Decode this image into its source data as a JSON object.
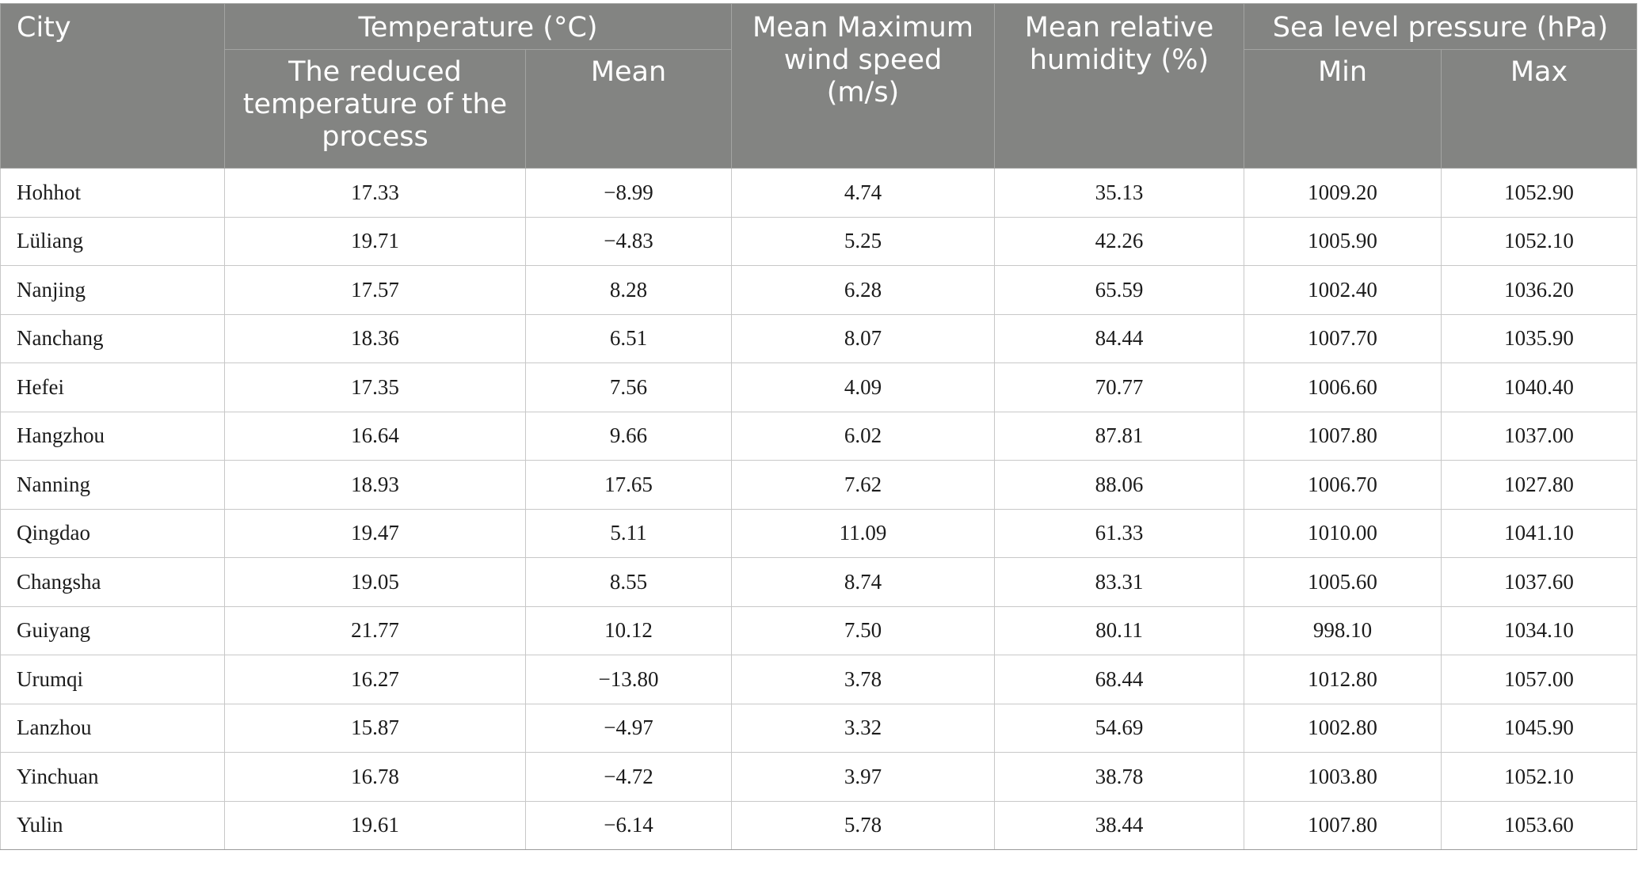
{
  "table": {
    "headers": {
      "city": "City",
      "temperature_group": "Temperature (°C)",
      "reduced_temperature": "The reduced temperature of the process",
      "mean_temperature": "Mean",
      "wind_speed": "Mean Maximum wind speed (m/s)",
      "humidity": "Mean relative humidity (%)",
      "pressure_group": "Sea level pressure (hPa)",
      "pressure_min": "Min",
      "pressure_max": "Max"
    },
    "rows": [
      {
        "city": "Hohhot",
        "reduced": "17.33",
        "mean": "−8.99",
        "wind": "4.74",
        "humidity": "35.13",
        "min": "1009.20",
        "max": "1052.90"
      },
      {
        "city": "Lüliang",
        "reduced": "19.71",
        "mean": "−4.83",
        "wind": "5.25",
        "humidity": "42.26",
        "min": "1005.90",
        "max": "1052.10"
      },
      {
        "city": "Nanjing",
        "reduced": "17.57",
        "mean": "8.28",
        "wind": "6.28",
        "humidity": "65.59",
        "min": "1002.40",
        "max": "1036.20"
      },
      {
        "city": "Nanchang",
        "reduced": "18.36",
        "mean": "6.51",
        "wind": "8.07",
        "humidity": "84.44",
        "min": "1007.70",
        "max": "1035.90"
      },
      {
        "city": "Hefei",
        "reduced": "17.35",
        "mean": "7.56",
        "wind": "4.09",
        "humidity": "70.77",
        "min": "1006.60",
        "max": "1040.40"
      },
      {
        "city": "Hangzhou",
        "reduced": "16.64",
        "mean": "9.66",
        "wind": "6.02",
        "humidity": "87.81",
        "min": "1007.80",
        "max": "1037.00"
      },
      {
        "city": "Nanning",
        "reduced": "18.93",
        "mean": "17.65",
        "wind": "7.62",
        "humidity": "88.06",
        "min": "1006.70",
        "max": "1027.80"
      },
      {
        "city": "Qingdao",
        "reduced": "19.47",
        "mean": "5.11",
        "wind": "11.09",
        "humidity": "61.33",
        "min": "1010.00",
        "max": "1041.10"
      },
      {
        "city": "Changsha",
        "reduced": "19.05",
        "mean": "8.55",
        "wind": "8.74",
        "humidity": "83.31",
        "min": "1005.60",
        "max": "1037.60"
      },
      {
        "city": "Guiyang",
        "reduced": "21.77",
        "mean": "10.12",
        "wind": "7.50",
        "humidity": "80.11",
        "min": "998.10",
        "max": "1034.10"
      },
      {
        "city": "Urumqi",
        "reduced": "16.27",
        "mean": "−13.80",
        "wind": "3.78",
        "humidity": "68.44",
        "min": "1012.80",
        "max": "1057.00"
      },
      {
        "city": "Lanzhou",
        "reduced": "15.87",
        "mean": "−4.97",
        "wind": "3.32",
        "humidity": "54.69",
        "min": "1002.80",
        "max": "1045.90"
      },
      {
        "city": "Yinchuan",
        "reduced": "16.78",
        "mean": "−4.72",
        "wind": "3.97",
        "humidity": "38.78",
        "min": "1003.80",
        "max": "1052.10"
      },
      {
        "city": "Yulin",
        "reduced": "19.61",
        "mean": "−6.14",
        "wind": "5.78",
        "humidity": "38.44",
        "min": "1007.80",
        "max": "1053.60"
      }
    ]
  }
}
